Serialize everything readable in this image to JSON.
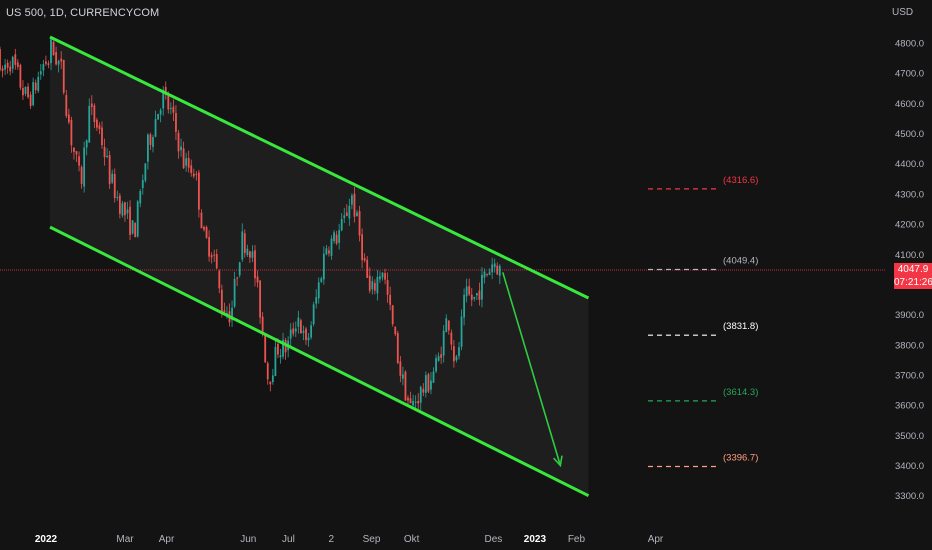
{
  "symbol_title": "US 500, 1D, CURRENCYCOM",
  "currency": "USD",
  "last_price": "4047.9",
  "countdown": "07:21:26",
  "colors": {
    "background": "#131313",
    "channel": "#39e83c",
    "up": "#26a69a",
    "down": "#ef5350",
    "price_line": "#f23645",
    "projection_arrow": "#2ecc40"
  },
  "chart_data": {
    "type": "candlestick",
    "y_axis": {
      "range": [
        3250,
        4980
      ],
      "ticks": [
        "4800.0",
        "4700.0",
        "4600.0",
        "4500.0",
        "4400.0",
        "4300.0",
        "4200.0",
        "4100.0",
        "3900.0",
        "3800.0",
        "3700.0",
        "3600.0",
        "3500.0",
        "3400.0",
        "3300.0"
      ],
      "tick_values": [
        4800,
        4700,
        4600,
        4500,
        4400,
        4300,
        4200,
        4100,
        3900,
        3800,
        3700,
        3600,
        3500,
        3400,
        3300
      ]
    },
    "x_axis": {
      "ticks": [
        "2022",
        "Mar",
        "Apr",
        "Jun",
        "Jul",
        "2",
        "Sep",
        "Okt",
        "Des",
        "2023",
        "Feb",
        "Apr"
      ],
      "tick_dates": [
        "2022-01-01",
        "2022-03-01",
        "2022-04-01",
        "2022-06-01",
        "2022-07-01",
        "2022-08-02",
        "2022-09-01",
        "2022-10-01",
        "2022-12-01",
        "2023-01-01",
        "2023-02-01",
        "2023-04-01"
      ],
      "bold_ticks": [
        "2022",
        "2023"
      ]
    },
    "channel": {
      "upper_line": [
        {
          "date": "2022-01-04",
          "value": 4820
        },
        {
          "date": "2023-02-10",
          "value": 3955
        }
      ],
      "lower_line": [
        {
          "date": "2022-01-04",
          "value": 4190
        },
        {
          "date": "2023-02-10",
          "value": 3300
        }
      ]
    },
    "levels": [
      {
        "label": "(4316.6)",
        "value": 4316.6,
        "color": "#f23645"
      },
      {
        "label": "(4049.4)",
        "value": 4049.4,
        "color": "#b2b5be"
      },
      {
        "label": "(3831.8)",
        "value": 3831.8,
        "color": "#ffffff"
      },
      {
        "label": "(3614.3)",
        "value": 3614.3,
        "color": "#26a65b"
      },
      {
        "label": "(3396.7)",
        "value": 3396.7,
        "color": "#ff9e80"
      }
    ],
    "projection_arrow": {
      "from": {
        "date": "2022-12-08",
        "value": 4040
      },
      "to": {
        "date": "2023-01-20",
        "value": 3400
      }
    },
    "price_series": [
      [
        "2022-01-04",
        4790
      ],
      [
        "2022-01-12",
        4720
      ],
      [
        "2022-01-20",
        4480
      ],
      [
        "2022-01-27",
        4330
      ],
      [
        "2022-02-02",
        4580
      ],
      [
        "2022-02-10",
        4510
      ],
      [
        "2022-02-18",
        4350
      ],
      [
        "2022-02-24",
        4280
      ],
      [
        "2022-03-08",
        4170
      ],
      [
        "2022-03-18",
        4460
      ],
      [
        "2022-03-29",
        4630
      ],
      [
        "2022-04-05",
        4560
      ],
      [
        "2022-04-14",
        4400
      ],
      [
        "2022-04-22",
        4380
      ],
      [
        "2022-04-29",
        4150
      ],
      [
        "2022-05-06",
        4110
      ],
      [
        "2022-05-12",
        3930
      ],
      [
        "2022-05-19",
        3900
      ],
      [
        "2022-05-27",
        4150
      ],
      [
        "2022-06-03",
        4120
      ],
      [
        "2022-06-10",
        3910
      ],
      [
        "2022-06-16",
        3680
      ],
      [
        "2022-06-23",
        3790
      ],
      [
        "2022-06-30",
        3790
      ],
      [
        "2022-07-08",
        3900
      ],
      [
        "2022-07-14",
        3790
      ],
      [
        "2022-07-22",
        3960
      ],
      [
        "2022-07-29",
        4130
      ],
      [
        "2022-08-05",
        4150
      ],
      [
        "2022-08-11",
        4200
      ],
      [
        "2022-08-17",
        4300
      ],
      [
        "2022-08-24",
        4140
      ],
      [
        "2022-08-31",
        3960
      ],
      [
        "2022-09-09",
        4060
      ],
      [
        "2022-09-16",
        3880
      ],
      [
        "2022-09-23",
        3700
      ],
      [
        "2022-09-30",
        3590
      ],
      [
        "2022-10-07",
        3640
      ],
      [
        "2022-10-13",
        3670
      ],
      [
        "2022-10-21",
        3750
      ],
      [
        "2022-10-28",
        3900
      ],
      [
        "2022-11-03",
        3720
      ],
      [
        "2022-11-10",
        3960
      ],
      [
        "2022-11-17",
        3950
      ],
      [
        "2022-11-25",
        4030
      ],
      [
        "2022-12-01",
        4080
      ],
      [
        "2022-12-06",
        4047.9
      ]
    ]
  }
}
